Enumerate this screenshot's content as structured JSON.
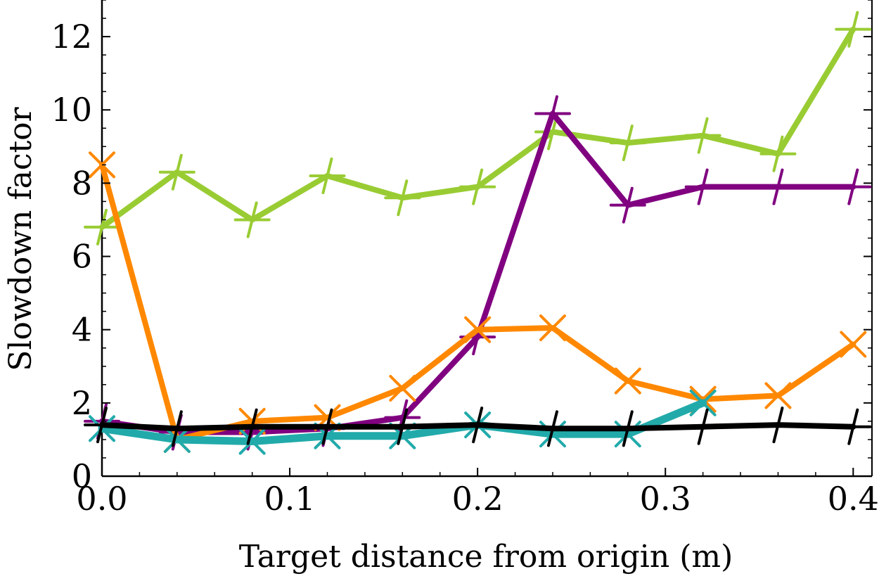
{
  "chart_data": {
    "type": "line",
    "title": "",
    "xlabel": "Target distance from origin (m)",
    "ylabel": "Slowdown factor",
    "xlim": [
      0.0,
      0.41
    ],
    "ylim": [
      0,
      13
    ],
    "x_ticks": [
      0.0,
      0.1,
      0.2,
      0.3,
      0.4
    ],
    "x_tick_labels": [
      "0.0",
      "0.1",
      "0.2",
      "0.3",
      "0.4"
    ],
    "y_ticks": [
      0,
      2,
      4,
      6,
      8,
      10,
      12
    ],
    "y_tick_labels": [
      "0",
      "2",
      "4",
      "6",
      "8",
      "10",
      "12"
    ],
    "grid": false,
    "legend": "none",
    "x": [
      0.0,
      0.04,
      0.08,
      0.12,
      0.16,
      0.2,
      0.24,
      0.28,
      0.32,
      0.36,
      0.4
    ],
    "series": [
      {
        "name": "green",
        "color": "#99cc33",
        "marker": "plus-tilted",
        "x": [
          0.0,
          0.04,
          0.08,
          0.12,
          0.16,
          0.2,
          0.24,
          0.28,
          0.32,
          0.36,
          0.4
        ],
        "values": [
          6.8,
          8.3,
          7.0,
          8.2,
          7.6,
          7.9,
          9.4,
          9.1,
          9.3,
          8.8,
          12.2
        ]
      },
      {
        "name": "purple",
        "color": "#800080",
        "marker": "plus-tilted",
        "x": [
          0.0,
          0.04,
          0.08,
          0.12,
          0.16,
          0.2,
          0.24,
          0.28,
          0.32,
          0.36,
          0.4
        ],
        "values": [
          1.5,
          1.2,
          1.2,
          1.3,
          1.6,
          3.8,
          9.9,
          7.4,
          7.9,
          7.9,
          7.9
        ]
      },
      {
        "name": "orange",
        "color": "#ff8800",
        "marker": "x",
        "x": [
          0.0,
          0.04,
          0.08,
          0.12,
          0.16,
          0.2,
          0.24,
          0.28,
          0.32,
          0.36,
          0.4
        ],
        "values": [
          8.5,
          1.0,
          1.5,
          1.6,
          2.4,
          4.0,
          4.05,
          2.6,
          2.1,
          2.2,
          3.6
        ]
      },
      {
        "name": "teal",
        "color": "#22aaaa",
        "marker": "x",
        "x": [
          0.0,
          0.04,
          0.08,
          0.12,
          0.16,
          0.2,
          0.24,
          0.28,
          0.32
        ],
        "values": [
          1.3,
          1.0,
          0.95,
          1.1,
          1.1,
          1.4,
          1.15,
          1.15,
          2.0
        ]
      },
      {
        "name": "black",
        "color": "#000000",
        "marker": "plus-tilted",
        "x": [
          0.0,
          0.04,
          0.08,
          0.12,
          0.16,
          0.2,
          0.24,
          0.28,
          0.32,
          0.36,
          0.4
        ],
        "values": [
          1.4,
          1.3,
          1.35,
          1.35,
          1.35,
          1.4,
          1.3,
          1.3,
          1.35,
          1.4,
          1.35
        ]
      }
    ]
  }
}
